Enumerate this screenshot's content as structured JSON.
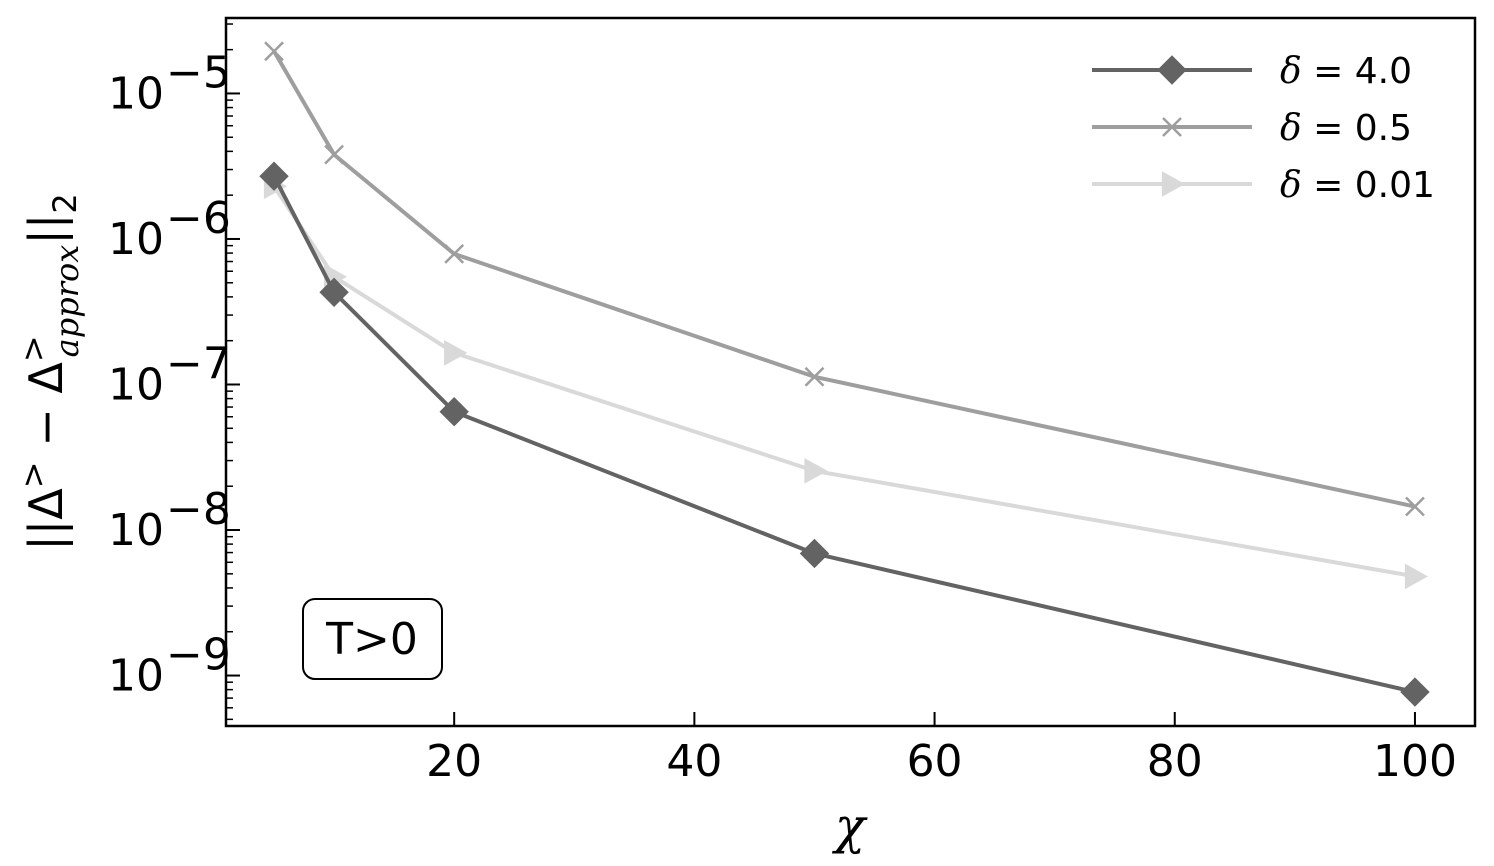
{
  "chart_data": {
    "type": "line",
    "xlabel": "χ",
    "ylabel": "||Δ> − Δ>approx||2",
    "ylabel_parts": {
      "prefix": "||Δ",
      "sup1": ">",
      "mid": " − Δ",
      "sup2": ">",
      "sub2": "approx",
      "suffix": "||",
      "suffix_sub": "2"
    },
    "xlim": [
      1,
      105
    ],
    "ylim": [
      4.5e-10,
      3.3e-05
    ],
    "yscale": "log",
    "xticks": [
      20,
      40,
      60,
      80,
      100
    ],
    "xtick_labels": [
      "20",
      "40",
      "60",
      "80",
      "100"
    ],
    "yticks": [
      {
        "value": 1e-05,
        "base": "10",
        "exp": "−5"
      },
      {
        "value": 1e-06,
        "base": "10",
        "exp": "−6"
      },
      {
        "value": 1e-07,
        "base": "10",
        "exp": "−7"
      },
      {
        "value": 1e-08,
        "base": "10",
        "exp": "−8"
      },
      {
        "value": 1e-09,
        "base": "10",
        "exp": "−9"
      }
    ],
    "grid": false,
    "legend_position": "top-right",
    "annotation": "T>0",
    "series": [
      {
        "name_symbol": "δ",
        "name_value": " = 4.0",
        "color": "#636363",
        "marker": "diamond",
        "x": [
          5,
          10,
          20,
          50,
          100
        ],
        "y": [
          2.7e-06,
          4.3e-07,
          6.5e-08,
          6.9e-09,
          7.7e-10
        ]
      },
      {
        "name_symbol": "δ",
        "name_value": " = 0.5",
        "color": "#9e9e9e",
        "marker": "x",
        "x": [
          5,
          10,
          20,
          50,
          100
        ],
        "y": [
          1.95e-05,
          3.8e-06,
          7.9e-07,
          1.13e-07,
          1.45e-08
        ]
      },
      {
        "name_symbol": "δ",
        "name_value": " = 0.01",
        "color": "#d9d9d9",
        "marker": "triangle-right",
        "x": [
          5,
          10,
          20,
          50,
          100
        ],
        "y": [
          2.3e-06,
          5.5e-07,
          1.65e-07,
          2.55e-08,
          4.8e-09
        ]
      }
    ]
  }
}
